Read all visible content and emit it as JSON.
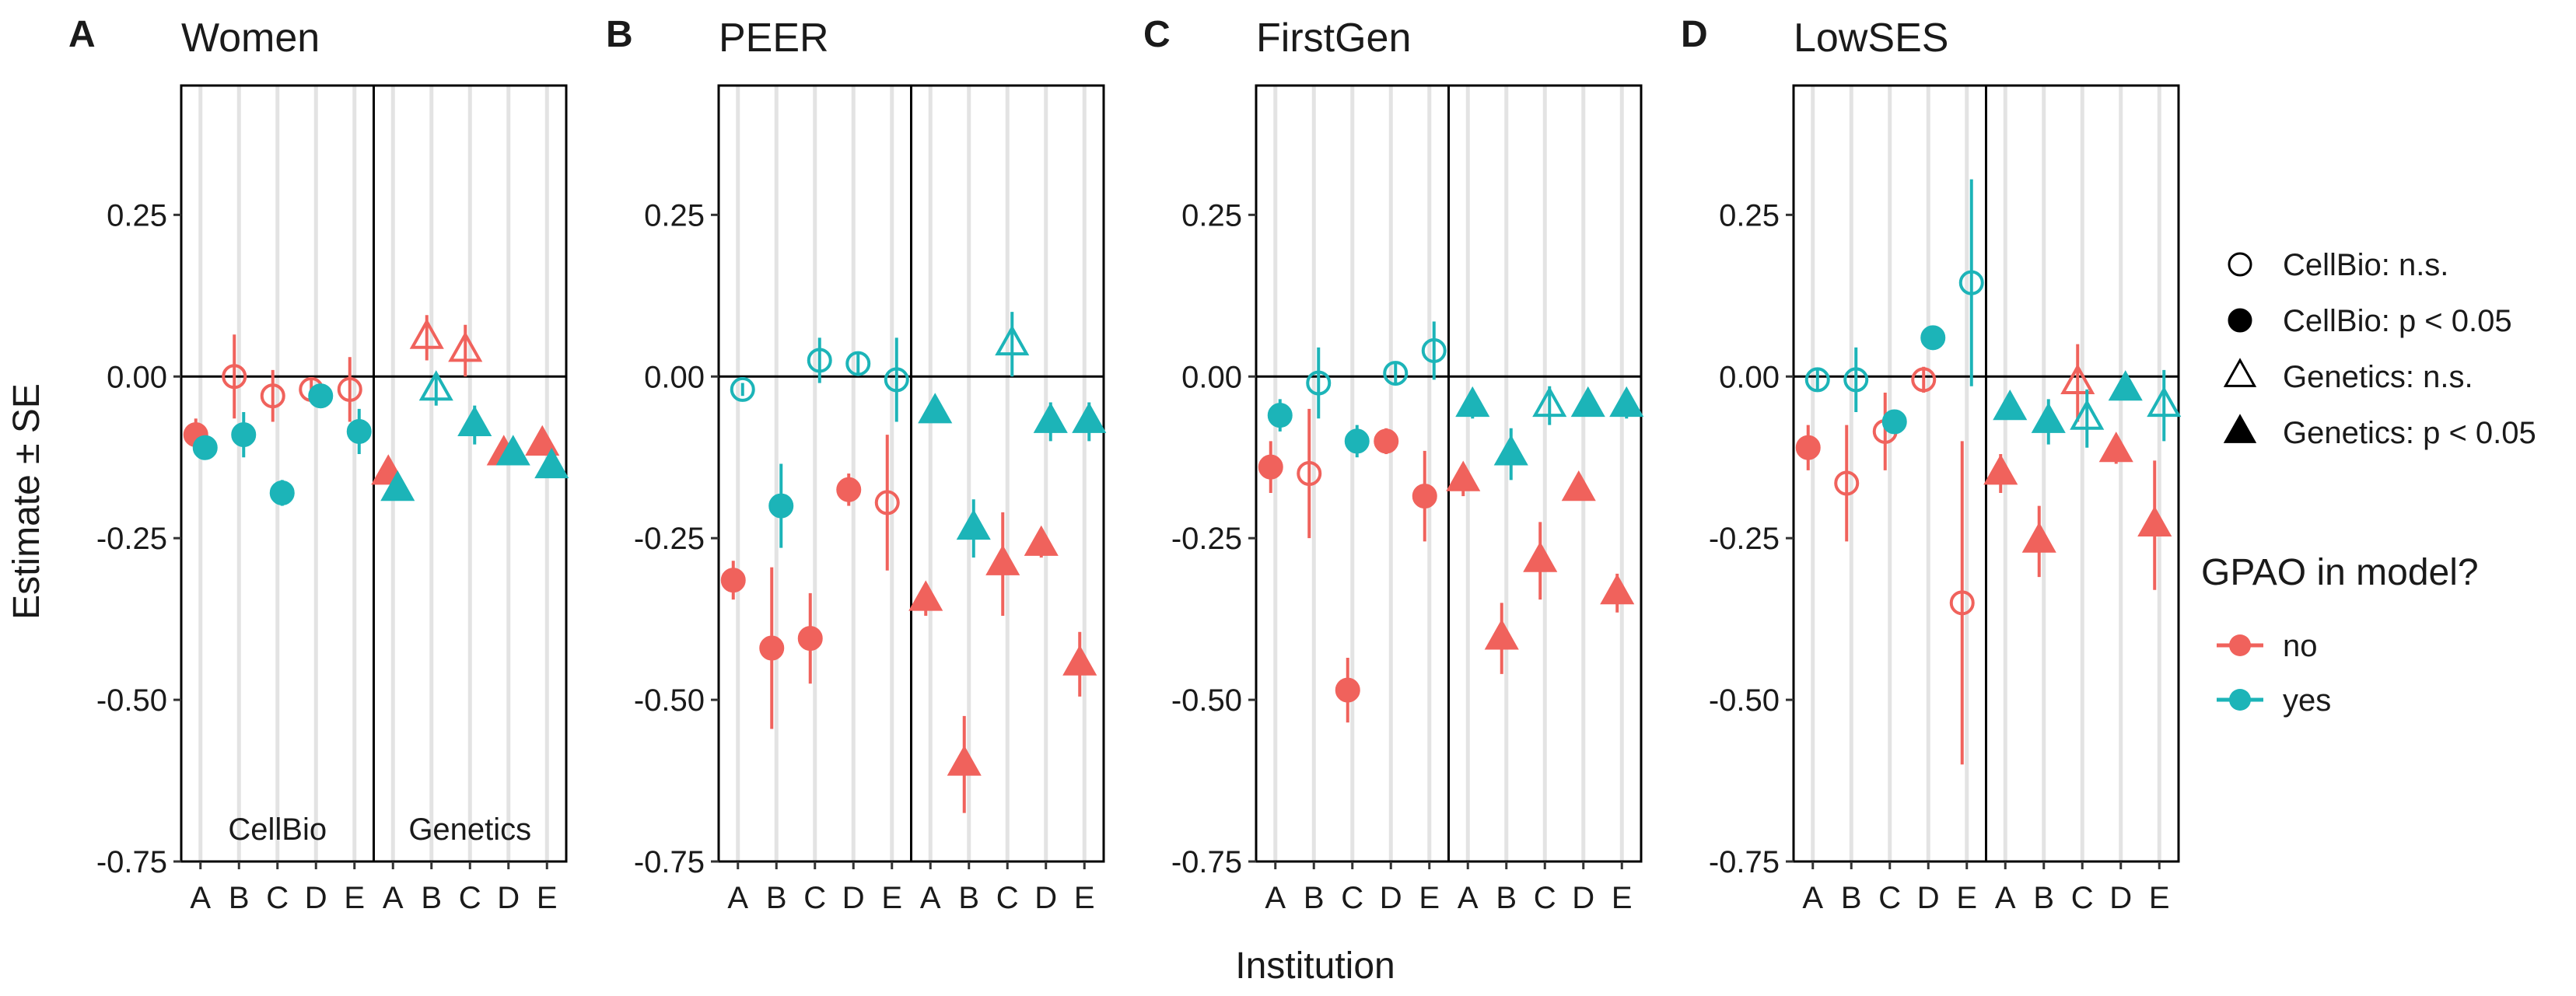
{
  "chart_data": {
    "type": "scatter",
    "xlabel": "Institution",
    "ylabel": "Estimate ± SE",
    "ylim": [
      -0.75,
      0.45
    ],
    "yticks": [
      "0.25",
      "0.00",
      "-0.25",
      "-0.50",
      "-0.75"
    ],
    "ytick_values": [
      0.25,
      0.0,
      -0.25,
      -0.5,
      -0.75
    ],
    "groups": [
      "CellBio",
      "Genetics"
    ],
    "institutions": [
      "A",
      "B",
      "C",
      "D",
      "E"
    ],
    "colors": {
      "no": "#F0625C",
      "yes": "#1CB4B8"
    },
    "panels": [
      {
        "letter": "A",
        "title": "Women",
        "group_labels": [
          "CellBio",
          "Genetics"
        ],
        "points": [
          {
            "g": "CellBio",
            "inst": "A",
            "gpao": "no",
            "est": -0.09,
            "se": 0.025,
            "sig": true
          },
          {
            "g": "CellBio",
            "inst": "A",
            "gpao": "yes",
            "est": -0.11,
            "se": 0.015,
            "sig": true
          },
          {
            "g": "CellBio",
            "inst": "B",
            "gpao": "no",
            "est": 0.0,
            "se": 0.065,
            "sig": false
          },
          {
            "g": "CellBio",
            "inst": "B",
            "gpao": "yes",
            "est": -0.09,
            "se": 0.035,
            "sig": true
          },
          {
            "g": "CellBio",
            "inst": "C",
            "gpao": "no",
            "est": -0.03,
            "se": 0.04,
            "sig": false
          },
          {
            "g": "CellBio",
            "inst": "C",
            "gpao": "yes",
            "est": -0.18,
            "se": 0.02,
            "sig": true
          },
          {
            "g": "CellBio",
            "inst": "D",
            "gpao": "no",
            "est": -0.02,
            "se": 0.015,
            "sig": false
          },
          {
            "g": "CellBio",
            "inst": "D",
            "gpao": "yes",
            "est": -0.03,
            "se": 0.015,
            "sig": true
          },
          {
            "g": "CellBio",
            "inst": "E",
            "gpao": "no",
            "est": -0.02,
            "se": 0.05,
            "sig": false
          },
          {
            "g": "CellBio",
            "inst": "E",
            "gpao": "yes",
            "est": -0.085,
            "se": 0.035,
            "sig": true
          },
          {
            "g": "Genetics",
            "inst": "A",
            "gpao": "no",
            "est": -0.15,
            "se": 0.015,
            "sig": true
          },
          {
            "g": "Genetics",
            "inst": "A",
            "gpao": "yes",
            "est": -0.175,
            "se": 0.015,
            "sig": true
          },
          {
            "g": "Genetics",
            "inst": "B",
            "gpao": "no",
            "est": 0.06,
            "se": 0.035,
            "sig": false
          },
          {
            "g": "Genetics",
            "inst": "B",
            "gpao": "yes",
            "est": -0.02,
            "se": 0.025,
            "sig": false
          },
          {
            "g": "Genetics",
            "inst": "C",
            "gpao": "no",
            "est": 0.04,
            "se": 0.04,
            "sig": false
          },
          {
            "g": "Genetics",
            "inst": "C",
            "gpao": "yes",
            "est": -0.075,
            "se": 0.03,
            "sig": true
          },
          {
            "g": "Genetics",
            "inst": "D",
            "gpao": "no",
            "est": -0.12,
            "se": 0.01,
            "sig": true
          },
          {
            "g": "Genetics",
            "inst": "D",
            "gpao": "yes",
            "est": -0.12,
            "se": 0.01,
            "sig": true
          },
          {
            "g": "Genetics",
            "inst": "E",
            "gpao": "no",
            "est": -0.105,
            "se": 0.015,
            "sig": true
          },
          {
            "g": "Genetics",
            "inst": "E",
            "gpao": "yes",
            "est": -0.14,
            "se": 0.015,
            "sig": true
          }
        ]
      },
      {
        "letter": "B",
        "title": "PEER",
        "group_labels": [
          "",
          ""
        ],
        "points": [
          {
            "g": "CellBio",
            "inst": "A",
            "gpao": "no",
            "est": -0.315,
            "se": 0.03,
            "sig": true
          },
          {
            "g": "CellBio",
            "inst": "A",
            "gpao": "yes",
            "est": -0.02,
            "se": 0.01,
            "sig": false
          },
          {
            "g": "CellBio",
            "inst": "B",
            "gpao": "no",
            "est": -0.42,
            "se": 0.125,
            "sig": true
          },
          {
            "g": "CellBio",
            "inst": "B",
            "gpao": "yes",
            "est": -0.2,
            "se": 0.065,
            "sig": true
          },
          {
            "g": "CellBio",
            "inst": "C",
            "gpao": "no",
            "est": -0.405,
            "se": 0.07,
            "sig": true
          },
          {
            "g": "CellBio",
            "inst": "C",
            "gpao": "yes",
            "est": 0.025,
            "se": 0.035,
            "sig": false
          },
          {
            "g": "CellBio",
            "inst": "D",
            "gpao": "no",
            "est": -0.175,
            "se": 0.025,
            "sig": true
          },
          {
            "g": "CellBio",
            "inst": "D",
            "gpao": "yes",
            "est": 0.02,
            "se": 0.015,
            "sig": false
          },
          {
            "g": "CellBio",
            "inst": "E",
            "gpao": "no",
            "est": -0.195,
            "se": 0.105,
            "sig": false
          },
          {
            "g": "CellBio",
            "inst": "E",
            "gpao": "yes",
            "est": -0.005,
            "se": 0.065,
            "sig": false
          },
          {
            "g": "Genetics",
            "inst": "A",
            "gpao": "no",
            "est": -0.345,
            "se": 0.025,
            "sig": true
          },
          {
            "g": "Genetics",
            "inst": "A",
            "gpao": "yes",
            "est": -0.055,
            "se": 0.015,
            "sig": true
          },
          {
            "g": "Genetics",
            "inst": "B",
            "gpao": "no",
            "est": -0.6,
            "se": 0.075,
            "sig": true
          },
          {
            "g": "Genetics",
            "inst": "B",
            "gpao": "yes",
            "est": -0.235,
            "se": 0.045,
            "sig": true
          },
          {
            "g": "Genetics",
            "inst": "C",
            "gpao": "no",
            "est": -0.29,
            "se": 0.08,
            "sig": true
          },
          {
            "g": "Genetics",
            "inst": "C",
            "gpao": "yes",
            "est": 0.05,
            "se": 0.05,
            "sig": false
          },
          {
            "g": "Genetics",
            "inst": "D",
            "gpao": "no",
            "est": -0.26,
            "se": 0.02,
            "sig": true
          },
          {
            "g": "Genetics",
            "inst": "D",
            "gpao": "yes",
            "est": -0.07,
            "se": 0.03,
            "sig": true
          },
          {
            "g": "Genetics",
            "inst": "E",
            "gpao": "no",
            "est": -0.445,
            "se": 0.05,
            "sig": true
          },
          {
            "g": "Genetics",
            "inst": "E",
            "gpao": "yes",
            "est": -0.07,
            "se": 0.03,
            "sig": true
          }
        ]
      },
      {
        "letter": "C",
        "title": "FirstGen",
        "group_labels": [
          "",
          ""
        ],
        "points": [
          {
            "g": "CellBio",
            "inst": "A",
            "gpao": "no",
            "est": -0.14,
            "se": 0.04,
            "sig": true
          },
          {
            "g": "CellBio",
            "inst": "A",
            "gpao": "yes",
            "est": -0.06,
            "se": 0.025,
            "sig": true
          },
          {
            "g": "CellBio",
            "inst": "B",
            "gpao": "no",
            "est": -0.15,
            "se": 0.1,
            "sig": false
          },
          {
            "g": "CellBio",
            "inst": "B",
            "gpao": "yes",
            "est": -0.01,
            "se": 0.055,
            "sig": false
          },
          {
            "g": "CellBio",
            "inst": "C",
            "gpao": "no",
            "est": -0.485,
            "se": 0.05,
            "sig": true
          },
          {
            "g": "CellBio",
            "inst": "C",
            "gpao": "yes",
            "est": -0.1,
            "se": 0.025,
            "sig": true
          },
          {
            "g": "CellBio",
            "inst": "D",
            "gpao": "no",
            "est": -0.1,
            "se": 0.02,
            "sig": true
          },
          {
            "g": "CellBio",
            "inst": "D",
            "gpao": "yes",
            "est": 0.005,
            "se": 0.015,
            "sig": false
          },
          {
            "g": "CellBio",
            "inst": "E",
            "gpao": "no",
            "est": -0.185,
            "se": 0.07,
            "sig": true
          },
          {
            "g": "CellBio",
            "inst": "E",
            "gpao": "yes",
            "est": 0.04,
            "se": 0.045,
            "sig": false
          },
          {
            "g": "Genetics",
            "inst": "A",
            "gpao": "no",
            "est": -0.16,
            "se": 0.025,
            "sig": true
          },
          {
            "g": "Genetics",
            "inst": "A",
            "gpao": "yes",
            "est": -0.045,
            "se": 0.02,
            "sig": true
          },
          {
            "g": "Genetics",
            "inst": "B",
            "gpao": "no",
            "est": -0.405,
            "se": 0.055,
            "sig": true
          },
          {
            "g": "Genetics",
            "inst": "B",
            "gpao": "yes",
            "est": -0.12,
            "se": 0.04,
            "sig": true
          },
          {
            "g": "Genetics",
            "inst": "C",
            "gpao": "no",
            "est": -0.285,
            "se": 0.06,
            "sig": true
          },
          {
            "g": "Genetics",
            "inst": "C",
            "gpao": "yes",
            "est": -0.045,
            "se": 0.03,
            "sig": false
          },
          {
            "g": "Genetics",
            "inst": "D",
            "gpao": "no",
            "est": -0.175,
            "se": 0.015,
            "sig": true
          },
          {
            "g": "Genetics",
            "inst": "D",
            "gpao": "yes",
            "est": -0.045,
            "se": 0.015,
            "sig": true
          },
          {
            "g": "Genetics",
            "inst": "E",
            "gpao": "no",
            "est": -0.335,
            "se": 0.03,
            "sig": true
          },
          {
            "g": "Genetics",
            "inst": "E",
            "gpao": "yes",
            "est": -0.045,
            "se": 0.02,
            "sig": true
          }
        ]
      },
      {
        "letter": "D",
        "title": "LowSES",
        "group_labels": [
          "",
          ""
        ],
        "points": [
          {
            "g": "CellBio",
            "inst": "A",
            "gpao": "no",
            "est": -0.11,
            "se": 0.035,
            "sig": true
          },
          {
            "g": "CellBio",
            "inst": "A",
            "gpao": "yes",
            "est": -0.005,
            "se": 0.015,
            "sig": false
          },
          {
            "g": "CellBio",
            "inst": "B",
            "gpao": "no",
            "est": -0.165,
            "se": 0.09,
            "sig": false
          },
          {
            "g": "CellBio",
            "inst": "B",
            "gpao": "yes",
            "est": -0.005,
            "se": 0.05,
            "sig": false
          },
          {
            "g": "CellBio",
            "inst": "C",
            "gpao": "no",
            "est": -0.085,
            "se": 0.06,
            "sig": false
          },
          {
            "g": "CellBio",
            "inst": "C",
            "gpao": "yes",
            "est": -0.07,
            "se": 0.015,
            "sig": true
          },
          {
            "g": "CellBio",
            "inst": "D",
            "gpao": "no",
            "est": -0.005,
            "se": 0.02,
            "sig": false
          },
          {
            "g": "CellBio",
            "inst": "D",
            "gpao": "yes",
            "est": 0.06,
            "se": 0.01,
            "sig": true
          },
          {
            "g": "CellBio",
            "inst": "E",
            "gpao": "no",
            "est": -0.35,
            "se": 0.25,
            "sig": false
          },
          {
            "g": "CellBio",
            "inst": "E",
            "gpao": "yes",
            "est": 0.145,
            "se": 0.16,
            "sig": false
          },
          {
            "g": "Genetics",
            "inst": "A",
            "gpao": "no",
            "est": -0.15,
            "se": 0.03,
            "sig": true
          },
          {
            "g": "Genetics",
            "inst": "A",
            "gpao": "yes",
            "est": -0.05,
            "se": 0.015,
            "sig": true
          },
          {
            "g": "Genetics",
            "inst": "B",
            "gpao": "no",
            "est": -0.255,
            "se": 0.055,
            "sig": true
          },
          {
            "g": "Genetics",
            "inst": "B",
            "gpao": "yes",
            "est": -0.07,
            "se": 0.035,
            "sig": true
          },
          {
            "g": "Genetics",
            "inst": "C",
            "gpao": "no",
            "est": -0.01,
            "se": 0.06,
            "sig": false
          },
          {
            "g": "Genetics",
            "inst": "C",
            "gpao": "yes",
            "est": -0.065,
            "se": 0.045,
            "sig": false
          },
          {
            "g": "Genetics",
            "inst": "D",
            "gpao": "no",
            "est": -0.115,
            "se": 0.02,
            "sig": true
          },
          {
            "g": "Genetics",
            "inst": "D",
            "gpao": "yes",
            "est": -0.02,
            "se": 0.01,
            "sig": true
          },
          {
            "g": "Genetics",
            "inst": "E",
            "gpao": "no",
            "est": -0.23,
            "se": 0.1,
            "sig": true
          },
          {
            "g": "Genetics",
            "inst": "E",
            "gpao": "yes",
            "est": -0.045,
            "se": 0.055,
            "sig": false
          }
        ]
      }
    ],
    "legend_shape": {
      "placement": "right",
      "items": [
        {
          "label": "CellBio: n.s.",
          "marker": "circle",
          "filled": false
        },
        {
          "label": "CellBio: p < 0.05",
          "marker": "circle",
          "filled": true
        },
        {
          "label": "Genetics: n.s.",
          "marker": "triangle",
          "filled": false
        },
        {
          "label": "Genetics: p < 0.05",
          "marker": "triangle",
          "filled": true
        }
      ]
    },
    "legend_color": {
      "placement": "right",
      "title": "GPAO in model?",
      "items": [
        {
          "label": "no",
          "key": "no"
        },
        {
          "label": "yes",
          "key": "yes"
        }
      ]
    }
  }
}
